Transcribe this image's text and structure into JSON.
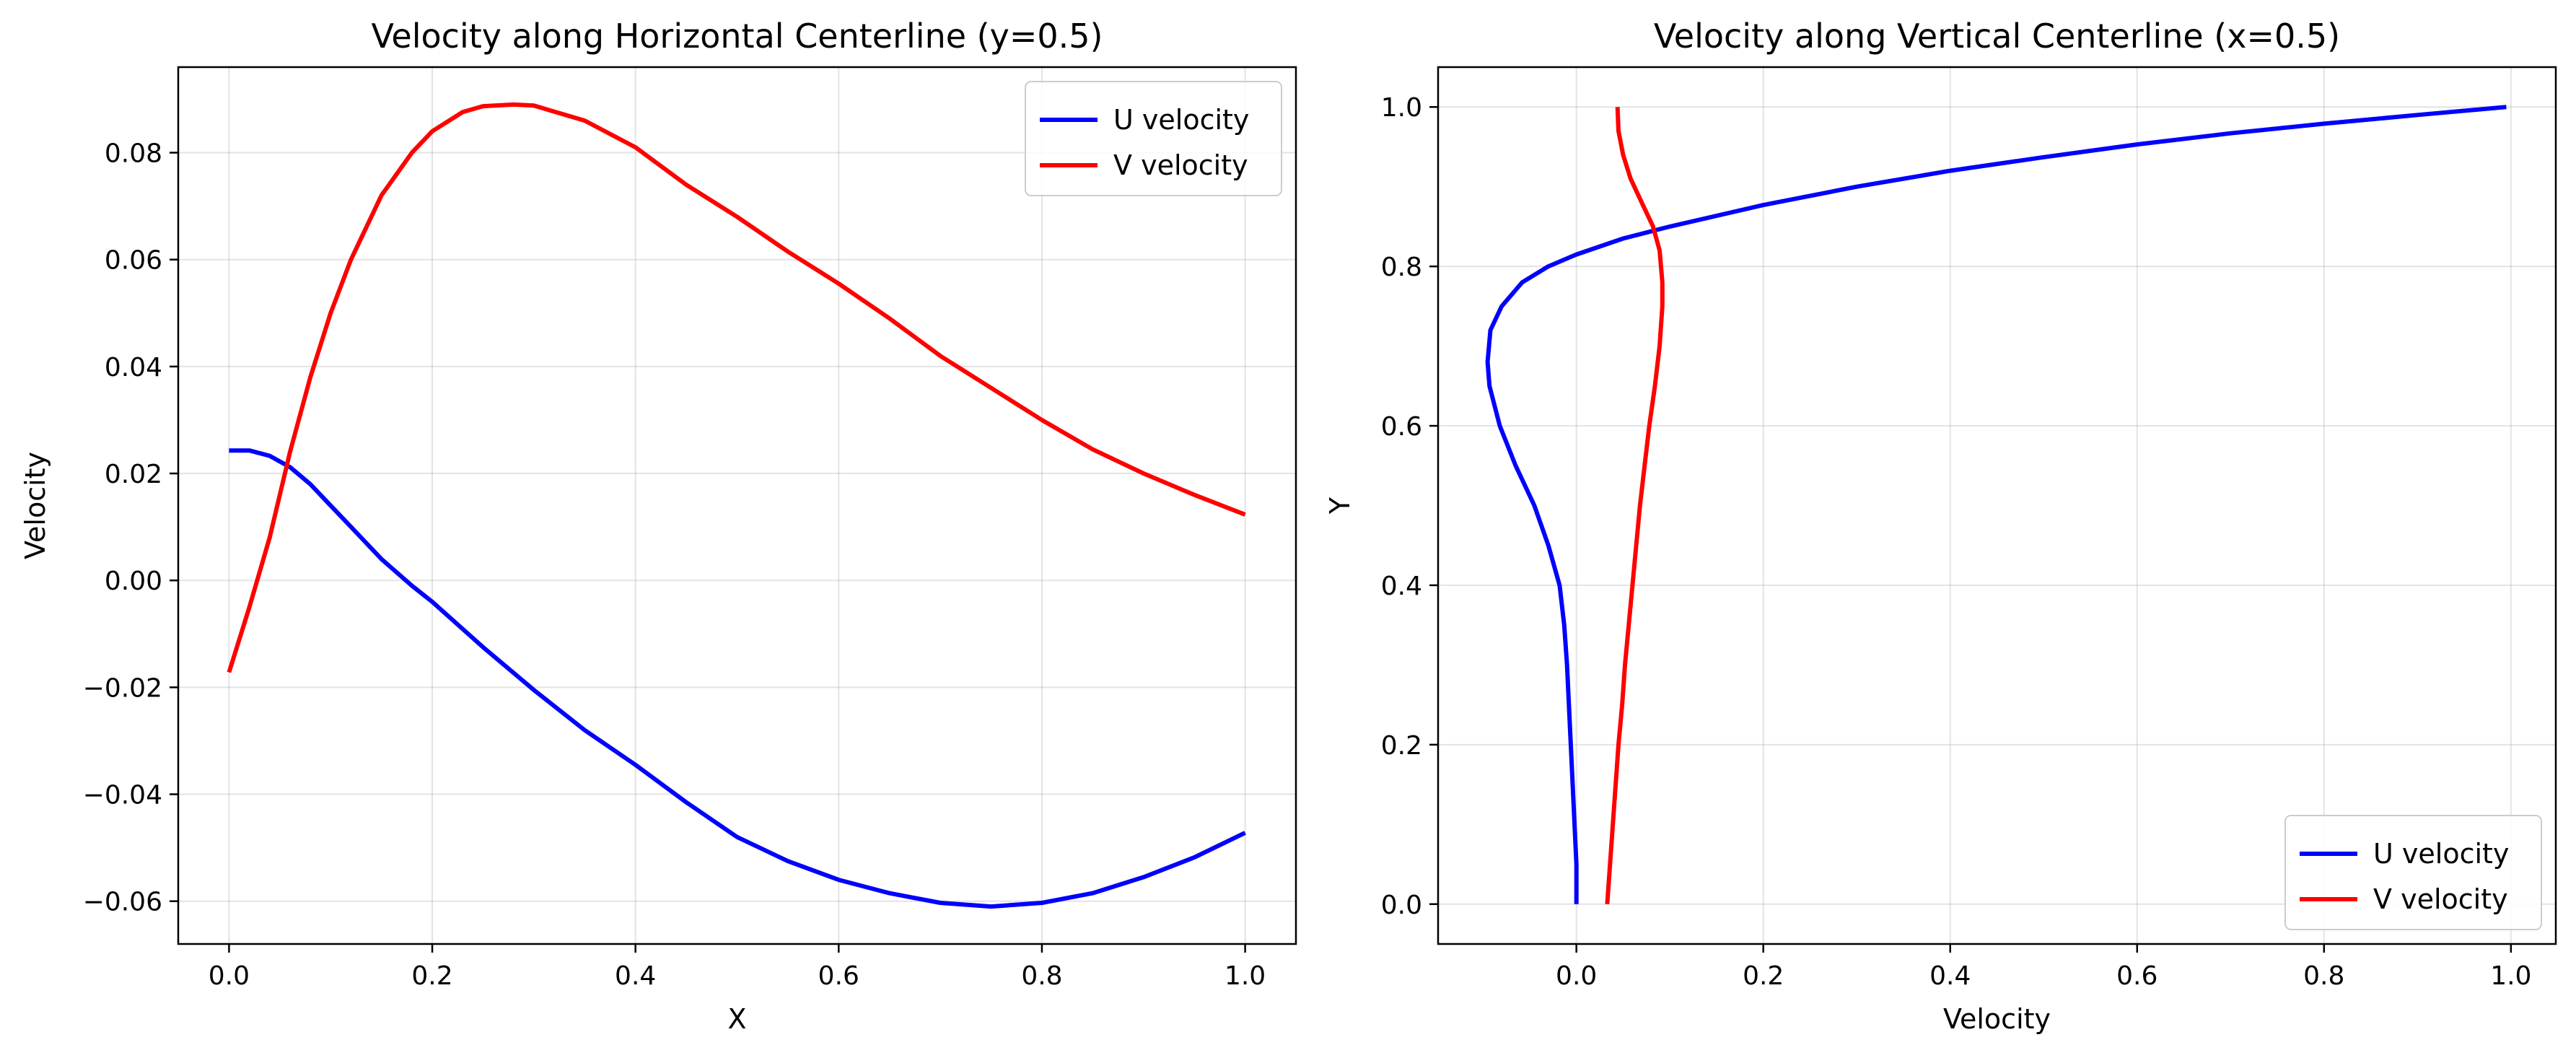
{
  "colors": {
    "u_velocity": "#0000ff",
    "v_velocity": "#ff0000"
  },
  "chart_data": [
    {
      "type": "line",
      "title": "Velocity along Horizontal Centerline (y=0.5)",
      "xlabel": "X",
      "ylabel": "Velocity",
      "xlim": [
        -0.05,
        1.05
      ],
      "ylim": [
        -0.068,
        0.096
      ],
      "xticks": [
        0.0,
        0.2,
        0.4,
        0.6,
        0.8,
        1.0
      ],
      "xtick_labels": [
        "0.0",
        "0.2",
        "0.4",
        "0.6",
        "0.8",
        "1.0"
      ],
      "yticks": [
        -0.06,
        -0.04,
        -0.02,
        0.0,
        0.02,
        0.04,
        0.06,
        0.08
      ],
      "ytick_labels": [
        "−0.06",
        "−0.04",
        "−0.02",
        "0.00",
        "0.02",
        "0.04",
        "0.06",
        "0.08"
      ],
      "grid": true,
      "legend_position": "top-right",
      "series": [
        {
          "name": "U velocity",
          "color": "#0000ff",
          "points": [
            [
              0.0,
              0.0243
            ],
            [
              0.02,
              0.0243
            ],
            [
              0.04,
              0.0233
            ],
            [
              0.06,
              0.0212
            ],
            [
              0.08,
              0.018
            ],
            [
              0.1,
              0.014
            ],
            [
              0.12,
              0.01
            ],
            [
              0.15,
              0.004
            ],
            [
              0.18,
              -0.001
            ],
            [
              0.2,
              -0.004
            ],
            [
              0.25,
              -0.0125
            ],
            [
              0.3,
              -0.0205
            ],
            [
              0.35,
              -0.028
            ],
            [
              0.4,
              -0.0345
            ],
            [
              0.45,
              -0.0415
            ],
            [
              0.5,
              -0.048
            ],
            [
              0.55,
              -0.0525
            ],
            [
              0.6,
              -0.056
            ],
            [
              0.65,
              -0.0585
            ],
            [
              0.7,
              -0.0603
            ],
            [
              0.75,
              -0.061
            ],
            [
              0.8,
              -0.0603
            ],
            [
              0.85,
              -0.0585
            ],
            [
              0.9,
              -0.0555
            ],
            [
              0.95,
              -0.0518
            ],
            [
              1.0,
              -0.0472
            ]
          ]
        },
        {
          "name": "V velocity",
          "color": "#ff0000",
          "points": [
            [
              0.0,
              -0.0172
            ],
            [
              0.02,
              -0.005
            ],
            [
              0.04,
              0.008
            ],
            [
              0.06,
              0.024
            ],
            [
              0.08,
              0.038
            ],
            [
              0.1,
              0.05
            ],
            [
              0.12,
              0.06
            ],
            [
              0.15,
              0.072
            ],
            [
              0.18,
              0.08
            ],
            [
              0.2,
              0.084
            ],
            [
              0.23,
              0.0876
            ],
            [
              0.25,
              0.0887
            ],
            [
              0.28,
              0.089
            ],
            [
              0.3,
              0.0888
            ],
            [
              0.35,
              0.086
            ],
            [
              0.4,
              0.081
            ],
            [
              0.45,
              0.074
            ],
            [
              0.5,
              0.068
            ],
            [
              0.55,
              0.0615
            ],
            [
              0.6,
              0.0555
            ],
            [
              0.65,
              0.049
            ],
            [
              0.7,
              0.042
            ],
            [
              0.75,
              0.036
            ],
            [
              0.8,
              0.03
            ],
            [
              0.85,
              0.0245
            ],
            [
              0.9,
              0.02
            ],
            [
              0.95,
              0.016
            ],
            [
              1.0,
              0.0123
            ]
          ]
        }
      ]
    },
    {
      "type": "line",
      "title": "Velocity along Vertical Centerline (x=0.5)",
      "xlabel": "Velocity",
      "ylabel": "Y",
      "xlim": [
        -0.148,
        1.048
      ],
      "ylim": [
        -0.05,
        1.05
      ],
      "xticks": [
        0.0,
        0.2,
        0.4,
        0.6,
        0.8,
        1.0
      ],
      "xtick_labels": [
        "0.0",
        "0.2",
        "0.4",
        "0.6",
        "0.8",
        "1.0"
      ],
      "yticks": [
        0.0,
        0.2,
        0.4,
        0.6,
        0.8,
        1.0
      ],
      "ytick_labels": [
        "0.0",
        "0.2",
        "0.4",
        "0.6",
        "0.8",
        "1.0"
      ],
      "grid": true,
      "legend_position": "bottom-right",
      "series": [
        {
          "name": "U velocity",
          "color": "#0000ff",
          "points": [
            [
              0.0,
              0.0
            ],
            [
              0.0,
              0.05
            ],
            [
              -0.002,
              0.1
            ],
            [
              -0.004,
              0.15
            ],
            [
              -0.006,
              0.2
            ],
            [
              -0.008,
              0.25
            ],
            [
              -0.01,
              0.3
            ],
            [
              -0.013,
              0.35
            ],
            [
              -0.018,
              0.4
            ],
            [
              -0.03,
              0.45
            ],
            [
              -0.045,
              0.5
            ],
            [
              -0.065,
              0.55
            ],
            [
              -0.082,
              0.6
            ],
            [
              -0.093,
              0.65
            ],
            [
              -0.095,
              0.68
            ],
            [
              -0.092,
              0.72
            ],
            [
              -0.08,
              0.75
            ],
            [
              -0.058,
              0.78
            ],
            [
              -0.03,
              0.8
            ],
            [
              0.0,
              0.815
            ],
            [
              0.05,
              0.835
            ],
            [
              0.1,
              0.85
            ],
            [
              0.2,
              0.877
            ],
            [
              0.3,
              0.9
            ],
            [
              0.4,
              0.92
            ],
            [
              0.5,
              0.937
            ],
            [
              0.6,
              0.953
            ],
            [
              0.7,
              0.967
            ],
            [
              0.8,
              0.979
            ],
            [
              0.9,
              0.99
            ],
            [
              0.995,
              1.0
            ]
          ]
        },
        {
          "name": "V velocity",
          "color": "#ff0000",
          "points": [
            [
              0.033,
              0.0
            ],
            [
              0.036,
              0.05
            ],
            [
              0.039,
              0.1
            ],
            [
              0.042,
              0.15
            ],
            [
              0.045,
              0.2
            ],
            [
              0.049,
              0.25
            ],
            [
              0.052,
              0.3
            ],
            [
              0.056,
              0.35
            ],
            [
              0.06,
              0.4
            ],
            [
              0.064,
              0.45
            ],
            [
              0.068,
              0.5
            ],
            [
              0.073,
              0.55
            ],
            [
              0.078,
              0.6
            ],
            [
              0.084,
              0.65
            ],
            [
              0.089,
              0.7
            ],
            [
              0.092,
              0.75
            ],
            [
              0.092,
              0.78
            ],
            [
              0.089,
              0.82
            ],
            [
              0.082,
              0.85
            ],
            [
              0.07,
              0.88
            ],
            [
              0.058,
              0.91
            ],
            [
              0.05,
              0.94
            ],
            [
              0.045,
              0.97
            ],
            [
              0.044,
              1.0
            ]
          ]
        }
      ]
    }
  ]
}
